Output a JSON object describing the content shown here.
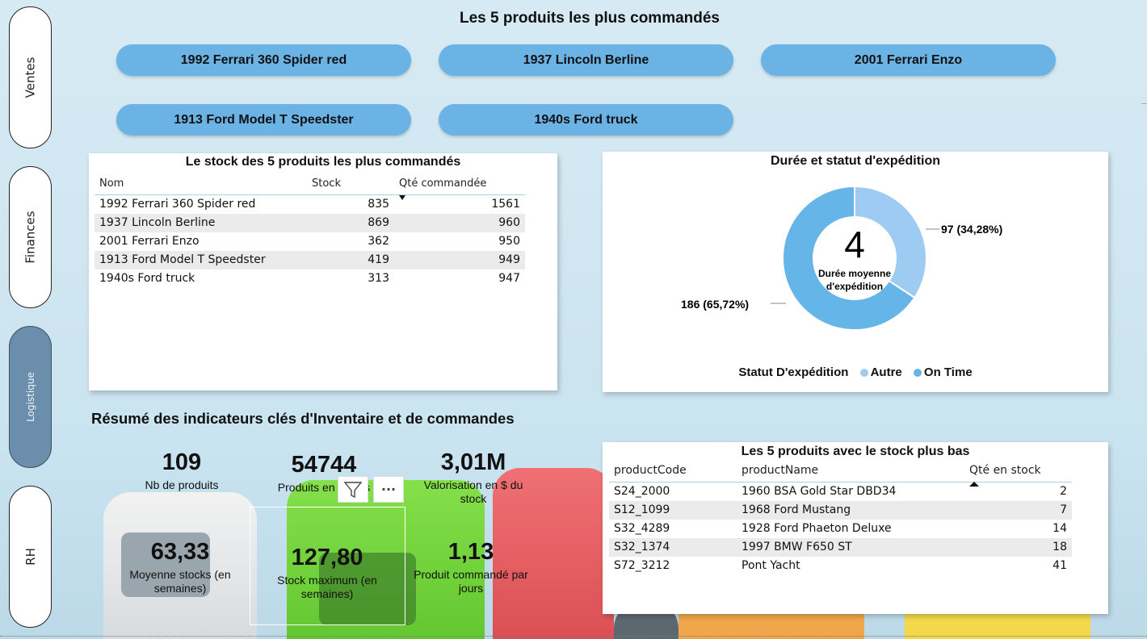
{
  "nav": {
    "items": [
      {
        "label": "Ventes"
      },
      {
        "label": "Finances"
      },
      {
        "label": "Logistique"
      },
      {
        "label": "RH"
      }
    ],
    "active": "Logistique"
  },
  "top_products": {
    "title": "Les 5 produits les plus commandés",
    "items": [
      "1992 Ferrari 360 Spider red",
      "1937 Lincoln Berline",
      "2001 Ferrari Enzo",
      "1913 Ford Model T Speedster",
      "1940s Ford truck"
    ]
  },
  "stock_table": {
    "title": "Le stock des 5 produits les plus commandés",
    "columns": [
      "Nom",
      "Stock",
      "Qté commandée"
    ],
    "rows": [
      [
        "1992 Ferrari 360 Spider red",
        "835",
        "1561"
      ],
      [
        "1937 Lincoln Berline",
        "869",
        "960"
      ],
      [
        "2001 Ferrari Enzo",
        "362",
        "950"
      ],
      [
        "1913 Ford Model T Speedster",
        "419",
        "949"
      ],
      [
        "1940s Ford truck",
        "313",
        "947"
      ]
    ]
  },
  "shipping": {
    "title": "Durée et statut d'expédition",
    "center_value": "4",
    "center_label_1": "Durée moyenne",
    "center_label_2": "d'expédition",
    "legend_title": "Statut D'expédition",
    "colors": {
      "Autre": "#9ecbf2",
      "On Time": "#66b5e8"
    }
  },
  "chart_data": {
    "type": "pie",
    "categories": [
      "Autre",
      "On Time"
    ],
    "values": [
      97,
      186
    ],
    "data_labels": [
      "97 (34,28%)",
      "186 (65,72%)"
    ],
    "legend_placement": "bottom"
  },
  "inventory": {
    "title": "Résumé des indicateurs clés d'Inventaire et de commandes",
    "kpis": [
      {
        "value": "109",
        "label": "Nb de produits"
      },
      {
        "value": "54744",
        "label": "Produits en stocks"
      },
      {
        "value": "3,01M",
        "label": "Valorisation en $ du stock"
      },
      {
        "value": "63,33",
        "label": "Moyenne stocks (en semaines)"
      },
      {
        "value": "127,80",
        "label": "Stock maximum (en semaines)"
      },
      {
        "value": "1,13",
        "label": "Produit commandé par jours"
      }
    ],
    "toolbar": {
      "filter_icon": "filter-icon",
      "more_icon": "more-options-icon",
      "more_label": "···"
    }
  },
  "low_stock": {
    "title": "Les 5 produits avec le stock plus bas",
    "columns": [
      "productCode",
      "productName",
      "Qté en stock"
    ],
    "rows": [
      [
        "S24_2000",
        "1960 BSA Gold Star DBD34",
        "2"
      ],
      [
        "S12_1099",
        "1968 Ford Mustang",
        "7"
      ],
      [
        "S32_4289",
        "1928 Ford Phaeton Deluxe",
        "14"
      ],
      [
        "S32_1374",
        "1997 BMW F650 ST",
        "18"
      ],
      [
        "S72_3212",
        "Pont Yacht",
        "41"
      ]
    ]
  }
}
